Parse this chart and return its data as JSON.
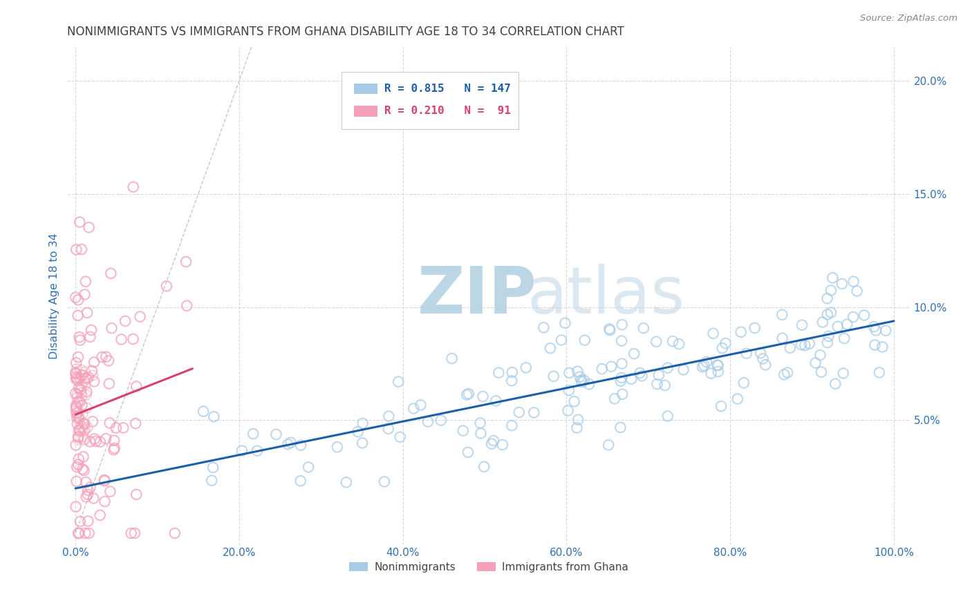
{
  "title": "NONIMMIGRANTS VS IMMIGRANTS FROM GHANA DISABILITY AGE 18 TO 34 CORRELATION CHART",
  "source": "Source: ZipAtlas.com",
  "ylabel": "Disability Age 18 to 34",
  "xlim": [
    -0.01,
    1.02
  ],
  "ylim": [
    -0.005,
    0.215
  ],
  "x_ticks": [
    0.0,
    0.2,
    0.4,
    0.6,
    0.8,
    1.0
  ],
  "x_tick_labels": [
    "0.0%",
    "20.0%",
    "40.0%",
    "60.0%",
    "80.0%",
    "100.0%"
  ],
  "y_ticks": [
    0.0,
    0.05,
    0.1,
    0.15,
    0.2
  ],
  "y_tick_labels": [
    "",
    "5.0%",
    "10.0%",
    "15.0%",
    "20.0%"
  ],
  "series1_color": "#a8cce8",
  "series2_color": "#f4a0b8",
  "series1_label": "Nonimmigrants",
  "series2_label": "Immigrants from Ghana",
  "series1_R": 0.815,
  "series1_N": 147,
  "series2_R": 0.21,
  "series2_N": 91,
  "trend1_color": "#1a5fa8",
  "trend2_color": "#d84070",
  "watermark_zip": "ZIP",
  "watermark_atlas": "atlas",
  "watermark_color": "#cde3f0",
  "background_color": "#ffffff",
  "grid_color": "#d8d8d8",
  "title_color": "#404040",
  "axis_color": "#3070b0",
  "ref_line_color": "#c8c8c8",
  "source_color": "#888888"
}
